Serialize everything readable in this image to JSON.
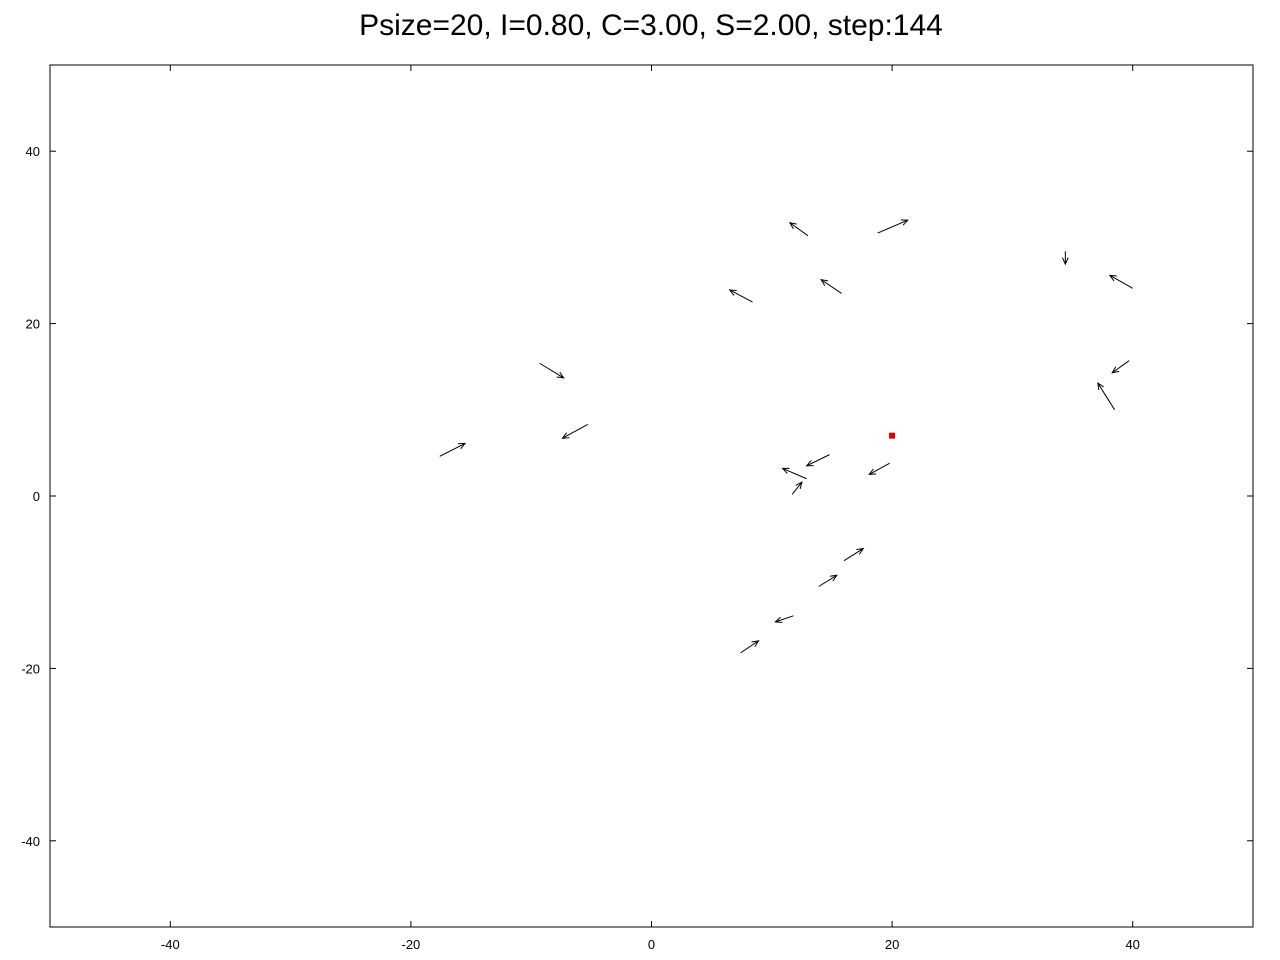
{
  "chart_data": {
    "type": "vector-field",
    "title": "Psize=20, I=0.80, C=3.00, S=2.00, step:144",
    "xlabel": "",
    "ylabel": "",
    "xlim": [
      -50,
      50
    ],
    "ylim": [
      -50,
      50
    ],
    "xticks": [
      -40,
      -20,
      0,
      20,
      40
    ],
    "yticks": [
      -40,
      -20,
      0,
      20,
      40
    ],
    "grid": false,
    "arrow_color": "#000000",
    "target_color": "#dd0000",
    "target": {
      "x": 20.0,
      "y": 7.0
    },
    "arrows": [
      {
        "x1": 18.8,
        "y1": 30.5,
        "x2": 21.3,
        "y2": 32.0
      },
      {
        "x1": 13.0,
        "y1": 30.2,
        "x2": 11.5,
        "y2": 31.7
      },
      {
        "x1": 8.4,
        "y1": 22.5,
        "x2": 6.5,
        "y2": 23.9
      },
      {
        "x1": 15.8,
        "y1": 23.5,
        "x2": 14.1,
        "y2": 25.1
      },
      {
        "x1": 34.4,
        "y1": 28.4,
        "x2": 34.4,
        "y2": 26.9
      },
      {
        "x1": 40.0,
        "y1": 24.1,
        "x2": 38.1,
        "y2": 25.6
      },
      {
        "x1": 39.7,
        "y1": 15.7,
        "x2": 38.3,
        "y2": 14.3
      },
      {
        "x1": 38.5,
        "y1": 10.0,
        "x2": 37.1,
        "y2": 13.1
      },
      {
        "x1": -9.3,
        "y1": 15.4,
        "x2": -7.3,
        "y2": 13.7
      },
      {
        "x1": -17.6,
        "y1": 4.6,
        "x2": -15.5,
        "y2": 6.1
      },
      {
        "x1": -5.3,
        "y1": 8.3,
        "x2": -7.4,
        "y2": 6.7
      },
      {
        "x1": 14.8,
        "y1": 4.8,
        "x2": 12.9,
        "y2": 3.5
      },
      {
        "x1": 19.8,
        "y1": 3.8,
        "x2": 18.1,
        "y2": 2.5
      },
      {
        "x1": 12.9,
        "y1": 2.0,
        "x2": 10.9,
        "y2": 3.2
      },
      {
        "x1": 11.7,
        "y1": 0.2,
        "x2": 12.5,
        "y2": 1.6
      },
      {
        "x1": 16.0,
        "y1": -7.5,
        "x2": 17.6,
        "y2": -6.1
      },
      {
        "x1": 13.9,
        "y1": -10.5,
        "x2": 15.4,
        "y2": -9.2
      },
      {
        "x1": 11.8,
        "y1": -13.9,
        "x2": 10.3,
        "y2": -14.6
      },
      {
        "x1": 7.4,
        "y1": -18.2,
        "x2": 8.9,
        "y2": -16.8
      }
    ]
  }
}
